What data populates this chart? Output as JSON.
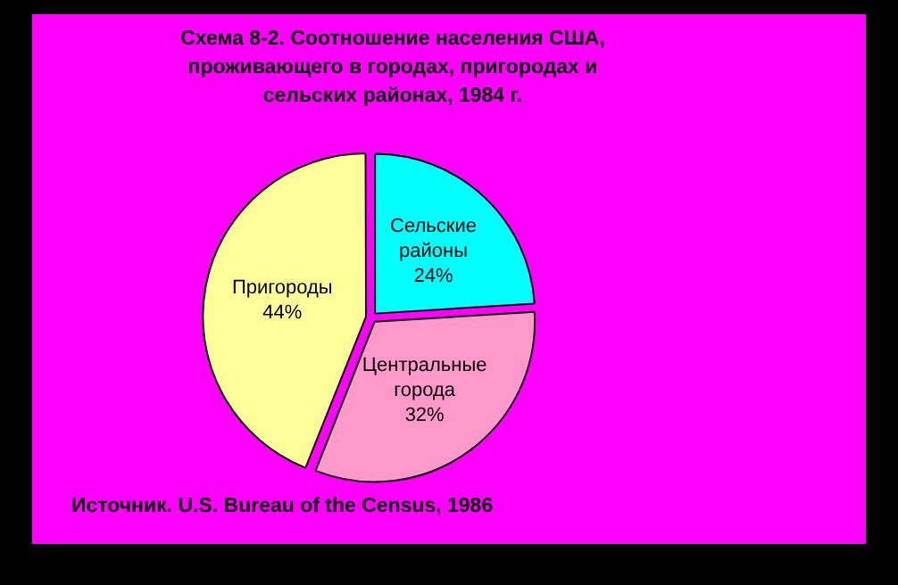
{
  "chart_data": {
    "type": "pie",
    "title": "Схема 8-2. Соотношение населения США, проживающего в городах, пригородах и сельских районах, 1984 г.",
    "categories": [
      "Сельские районы",
      "Центральные города",
      "Пригороды"
    ],
    "values": [
      24,
      32,
      44
    ],
    "colors": [
      "#00ffff",
      "#ff99cc",
      "#ffff99"
    ],
    "value_labels": [
      "24%",
      "32%",
      "44%"
    ],
    "legend": false,
    "annotations": [
      "Источник. U.S. Bureau of the Census, 1986"
    ]
  }
}
